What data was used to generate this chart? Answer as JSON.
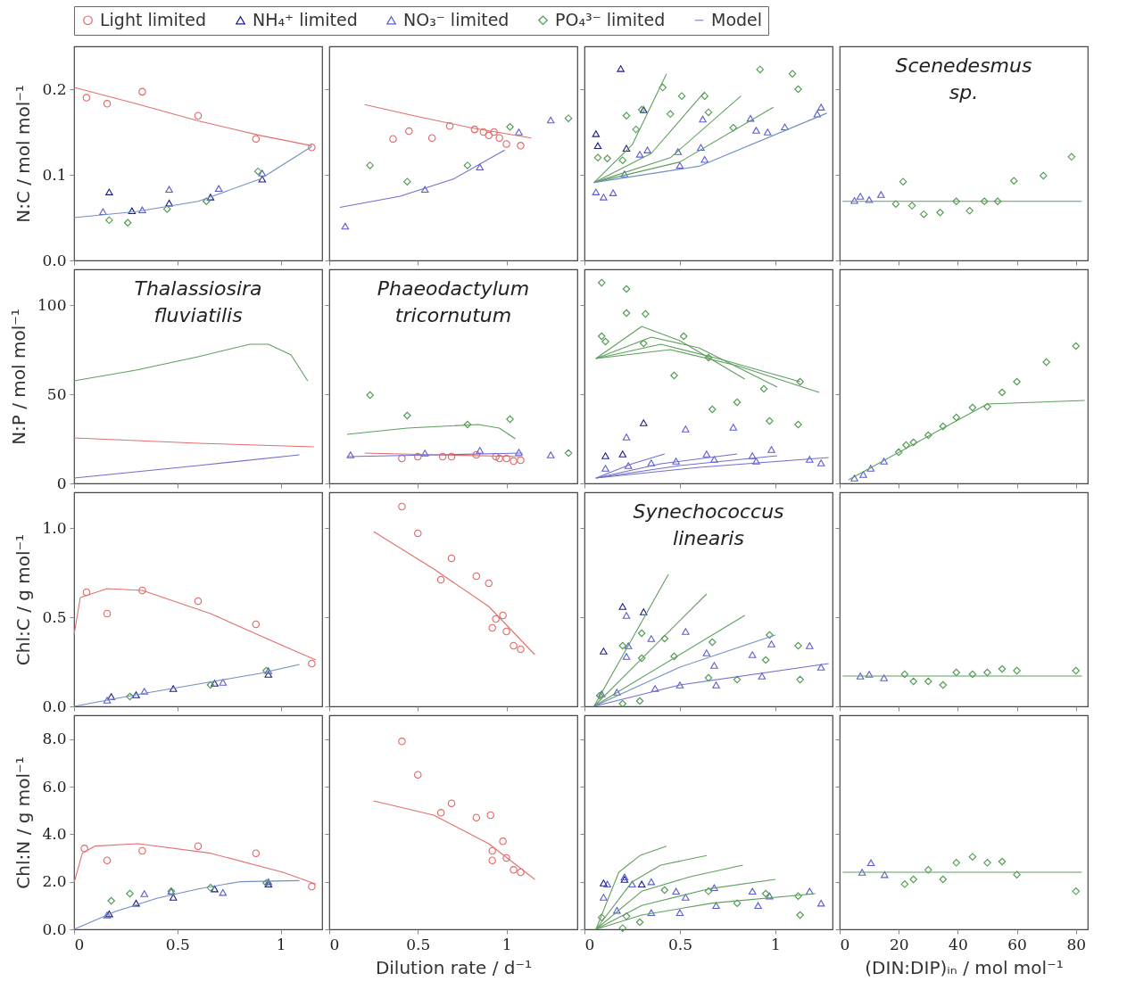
{
  "chart_data": [
    {
      "type": "scatter",
      "ylabel": "N:C / mol mol⁻¹",
      "legend": "top",
      "tick_labels": "y",
      "xlim": [
        0,
        1.2
      ],
      "xticks": [
        0,
        0.5,
        1
      ],
      "ylim": [
        0,
        0.25
      ],
      "yticks": [
        {
          "value": 0,
          "label": "0.0"
        },
        0.1,
        0.2
      ],
      "series": [
        {
          "name": "Light limited",
          "color": "#e06666",
          "marker": "circle",
          "x": [
            0.06,
            0.16,
            0.33,
            0.6,
            0.88,
            1.15
          ],
          "values": [
            0.19,
            0.183,
            0.197,
            0.169,
            0.142,
            0.132
          ]
        },
        {
          "name": "NH₄⁺ limited",
          "color": "#1c1c8c",
          "marker": "triangle",
          "x": [
            0.17,
            0.28,
            0.46,
            0.66,
            0.91
          ],
          "values": [
            0.08,
            0.058,
            0.067,
            0.074,
            0.095
          ]
        },
        {
          "name": "NO₃⁻ limited",
          "color": "#5b5bd6",
          "marker": "triangle",
          "x": [
            0.14,
            0.33,
            0.46,
            0.7,
            0.91
          ],
          "values": [
            0.057,
            0.059,
            0.083,
            0.084,
            0.102
          ]
        },
        {
          "name": "PO₄³⁻ limited",
          "color": "#4f9a4f",
          "marker": "diamond",
          "x": [
            0.17,
            0.26,
            0.45,
            0.64,
            0.89
          ],
          "values": [
            0.047,
            0.044,
            0.06,
            0.069,
            0.104
          ]
        },
        {
          "type": "line",
          "color": "#e07070",
          "x": [
            0,
            0.3,
            0.6,
            0.9,
            1.15
          ],
          "values": [
            0.202,
            0.183,
            0.163,
            0.146,
            0.134
          ]
        },
        {
          "name": "Model",
          "type": "line",
          "color": "#6f8fc0",
          "x": [
            0,
            0.3,
            0.6,
            0.9,
            1.15
          ],
          "values": [
            0.05,
            0.057,
            0.069,
            0.095,
            0.133
          ]
        }
      ]
    },
    {
      "type": "scatter",
      "tick_labels": false,
      "xlim": [
        0,
        1.4
      ],
      "xticks": [
        0,
        0.5,
        1
      ],
      "ylim": [
        0,
        0.25
      ],
      "yticks": [
        0,
        0.1,
        0.2
      ],
      "series": [
        {
          "name": "Light limited",
          "color": "#e06666",
          "marker": "circle",
          "x": [
            0.36,
            0.45,
            0.58,
            0.68,
            0.82,
            0.87,
            0.9,
            0.93,
            0.96,
            1.0,
            1.08
          ],
          "values": [
            0.142,
            0.151,
            0.143,
            0.157,
            0.153,
            0.15,
            0.146,
            0.15,
            0.143,
            0.136,
            0.134
          ]
        },
        {
          "name": "NO₃⁻ limited",
          "color": "#5b5bd6",
          "marker": "triangle",
          "x": [
            0.09,
            0.54,
            0.85,
            1.07,
            1.25
          ],
          "values": [
            0.04,
            0.083,
            0.109,
            0.15,
            0.164
          ]
        },
        {
          "name": "PO₄³⁻ limited",
          "color": "#4f9a4f",
          "marker": "diamond",
          "x": [
            0.23,
            0.44,
            0.78,
            1.02,
            1.35
          ],
          "values": [
            0.111,
            0.092,
            0.111,
            0.156,
            0.166
          ]
        },
        {
          "type": "line",
          "color": "#e07070",
          "x": [
            0.2,
            0.5,
            0.8,
            1.14
          ],
          "values": [
            0.182,
            0.168,
            0.155,
            0.143
          ]
        },
        {
          "type": "line",
          "color": "#6f6fd0",
          "x": [
            0.06,
            0.4,
            0.7,
            0.99
          ],
          "values": [
            0.062,
            0.075,
            0.095,
            0.129
          ]
        }
      ]
    },
    {
      "type": "scatter",
      "tick_labels": false,
      "xlim": [
        0,
        1.3
      ],
      "xticks": [
        0,
        0.5,
        1
      ],
      "ylim": [
        0,
        0.25
      ],
      "yticks": [
        0,
        0.1,
        0.2
      ],
      "series": [
        {
          "name": "NH₄⁺ limited",
          "color": "#1c1c8c",
          "marker": "triangle",
          "x": [
            0.06,
            0.07,
            0.19,
            0.22,
            0.31
          ],
          "values": [
            0.148,
            0.134,
            0.224,
            0.131,
            0.176
          ]
        },
        {
          "name": "NO₃⁻ limited",
          "color": "#5b5bd6",
          "marker": "triangle",
          "x": [
            0.06,
            0.1,
            0.15,
            0.21,
            0.29,
            0.33,
            0.49,
            0.5,
            0.61,
            0.63,
            0.62,
            0.87,
            0.9,
            0.96,
            1.05,
            1.22,
            1.24
          ],
          "values": [
            0.08,
            0.074,
            0.079,
            0.101,
            0.124,
            0.129,
            0.127,
            0.111,
            0.132,
            0.118,
            0.165,
            0.166,
            0.152,
            0.15,
            0.156,
            0.171,
            0.179
          ]
        },
        {
          "name": "PO₄³⁻ limited",
          "color": "#4f9a4f",
          "marker": "diamond",
          "x": [
            0.07,
            0.12,
            0.2,
            0.22,
            0.27,
            0.3,
            0.41,
            0.45,
            0.51,
            0.63,
            0.65,
            0.78,
            0.92,
            1.09,
            1.12
          ],
          "values": [
            0.12,
            0.119,
            0.117,
            0.169,
            0.153,
            0.176,
            0.202,
            0.171,
            0.192,
            0.192,
            0.173,
            0.155,
            0.223,
            0.218,
            0.2
          ]
        },
        {
          "type": "line",
          "color": "#5f9f5f",
          "x": [
            0.05,
            0.25,
            0.43
          ],
          "values": [
            0.091,
            0.135,
            0.218
          ]
        },
        {
          "type": "line",
          "color": "#5f9f5f",
          "x": [
            0.05,
            0.35,
            0.63
          ],
          "values": [
            0.091,
            0.125,
            0.197
          ]
        },
        {
          "type": "line",
          "color": "#5f9f5f",
          "x": [
            0.05,
            0.45,
            0.82
          ],
          "values": [
            0.091,
            0.12,
            0.192
          ]
        },
        {
          "type": "line",
          "color": "#5f9f5f",
          "x": [
            0.05,
            0.5,
            0.99
          ],
          "values": [
            0.091,
            0.115,
            0.179
          ]
        },
        {
          "type": "line",
          "color": "#6f8fc0",
          "x": [
            0.05,
            0.6,
            1.27
          ],
          "values": [
            0.091,
            0.11,
            0.172
          ]
        }
      ]
    },
    {
      "type": "scatter",
      "tick_labels": false,
      "annotations": [
        "Scenedesmus sp."
      ],
      "xlim": [
        0,
        84
      ],
      "xticks": [
        0,
        20,
        40,
        60,
        80
      ],
      "ylim": [
        0,
        0.25
      ],
      "yticks": [
        0,
        0.1,
        0.2
      ],
      "series": [
        {
          "name": "NO₃⁻ limited",
          "color": "#5b5bd6",
          "marker": "triangle",
          "x": [
            5,
            7,
            10,
            14
          ],
          "values": [
            0.07,
            0.075,
            0.071,
            0.077
          ]
        },
        {
          "name": "PO₄³⁻ limited",
          "color": "#4f9a4f",
          "marker": "diamond",
          "x": [
            19,
            21.5,
            24.5,
            28.5,
            34,
            39.5,
            44,
            49,
            53.5,
            59,
            69,
            78.5
          ],
          "values": [
            0.066,
            0.092,
            0.064,
            0.054,
            0.056,
            0.069,
            0.058,
            0.069,
            0.069,
            0.093,
            0.099,
            0.121
          ]
        },
        {
          "type": "line",
          "color": "#5f9f5f",
          "x": [
            1,
            82
          ],
          "values": [
            0.069,
            0.069
          ]
        }
      ]
    },
    {
      "type": "scatter",
      "ylabel": "N:P / mol mol⁻¹",
      "tick_labels": "y",
      "annotations": [
        "Thalassiosira fluviatilis"
      ],
      "xlim": [
        0,
        1.2
      ],
      "xticks": [
        0,
        0.5,
        1
      ],
      "ylim": [
        0,
        120
      ],
      "yticks": [
        0,
        50,
        100
      ],
      "series": [
        {
          "type": "line",
          "color": "#5f9f5f",
          "x": [
            0,
            0.3,
            0.6,
            0.85,
            0.94,
            1.05,
            1.13
          ],
          "values": [
            57.5,
            63.5,
            71,
            78,
            78,
            72,
            57.5
          ]
        },
        {
          "type": "line",
          "color": "#e07070",
          "x": [
            0,
            0.6,
            1.16
          ],
          "values": [
            25.5,
            22.5,
            20.5
          ]
        },
        {
          "type": "line",
          "color": "#6f6fd0",
          "x": [
            0,
            0.6,
            1.09
          ],
          "values": [
            3,
            10,
            16
          ]
        }
      ]
    },
    {
      "type": "scatter",
      "tick_labels": false,
      "annotations": [
        "Phaeodactylum tricornutum"
      ],
      "xlim": [
        0,
        1.4
      ],
      "xticks": [
        0,
        0.5,
        1
      ],
      "ylim": [
        0,
        120
      ],
      "yticks": [
        0,
        50,
        100
      ],
      "series": [
        {
          "name": "Light limited",
          "color": "#e06666",
          "marker": "circle",
          "x": [
            0.41,
            0.5,
            0.64,
            0.69,
            0.83,
            0.94,
            0.96,
            1.0,
            1.04,
            1.08
          ],
          "values": [
            14,
            15,
            15,
            15,
            16,
            15,
            14,
            14,
            12.5,
            13
          ]
        },
        {
          "name": "NO₃⁻ limited",
          "color": "#5b5bd6",
          "marker": "triangle",
          "x": [
            0.12,
            0.54,
            0.85,
            1.07,
            1.25
          ],
          "values": [
            16,
            17,
            18.5,
            17.5,
            16
          ]
        },
        {
          "name": "PO₄³⁻ limited",
          "color": "#4f9a4f",
          "marker": "diamond",
          "x": [
            0.23,
            0.44,
            0.78,
            1.02,
            1.35
          ],
          "values": [
            49.5,
            38,
            33,
            36,
            17
          ]
        },
        {
          "type": "line",
          "color": "#5f9f5f",
          "x": [
            0.1,
            0.44,
            0.84,
            0.96,
            1.05
          ],
          "values": [
            27.5,
            31,
            33,
            31,
            25
          ]
        },
        {
          "type": "line",
          "color": "#e07070",
          "x": [
            0.2,
            0.6,
            1.09
          ],
          "values": [
            17,
            16,
            15
          ]
        },
        {
          "type": "line",
          "color": "#6f6fd0",
          "x": [
            0.1,
            0.6,
            1.09
          ],
          "values": [
            15,
            16,
            17
          ]
        }
      ]
    },
    {
      "type": "scatter",
      "tick_labels": false,
      "xlim": [
        0,
        1.3
      ],
      "xticks": [
        0,
        0.5,
        1
      ],
      "ylim": [
        0,
        120
      ],
      "yticks": [
        0,
        50,
        100
      ],
      "series": [
        {
          "name": "NH₄⁺ limited",
          "color": "#1c1c8c",
          "marker": "triangle",
          "x": [
            0.31,
            0.2,
            0.11
          ],
          "values": [
            34,
            16.5,
            15.5
          ]
        },
        {
          "name": "NO₃⁻ limited",
          "color": "#5b5bd6",
          "marker": "triangle",
          "x": [
            0.22,
            0.53,
            0.78,
            0.11,
            0.23,
            0.35,
            0.48,
            0.64,
            0.68,
            0.88,
            0.98,
            0.9,
            1.18,
            1.24
          ],
          "values": [
            26,
            30.5,
            31.5,
            8.5,
            10,
            11.5,
            12.5,
            16.5,
            13.5,
            15.5,
            19,
            12.5,
            13.5,
            11.5
          ]
        },
        {
          "name": "PO₄³⁻ limited",
          "color": "#4f9a4f",
          "marker": "diamond",
          "x": [
            0.09,
            0.22,
            0.22,
            0.32,
            0.09,
            0.11,
            0.52,
            0.47,
            0.65,
            0.94,
            1.13,
            0.8,
            0.67,
            0.97,
            1.12,
            0.31
          ],
          "values": [
            112.5,
            109,
            95.5,
            95,
            82.5,
            79.5,
            82.5,
            60.5,
            70.5,
            53,
            57,
            45.5,
            41.5,
            35,
            33,
            78.5
          ]
        },
        {
          "type": "line",
          "color": "#5f9f5f",
          "x": [
            0.06,
            0.3,
            0.5,
            0.84
          ],
          "values": [
            70,
            88,
            80,
            58.5
          ]
        },
        {
          "type": "line",
          "color": "#5f9f5f",
          "x": [
            0.06,
            0.35,
            0.6,
            1.01
          ],
          "values": [
            70,
            82,
            76,
            54
          ]
        },
        {
          "type": "line",
          "color": "#5f9f5f",
          "x": [
            0.06,
            0.4,
            0.7,
            1.13
          ],
          "values": [
            70,
            78,
            70,
            57
          ]
        },
        {
          "type": "line",
          "color": "#5f9f5f",
          "x": [
            0.06,
            0.45,
            0.8,
            1.23
          ],
          "values": [
            70,
            75,
            66,
            51
          ]
        },
        {
          "type": "line",
          "color": "#6f6fd0",
          "x": [
            0.06,
            0.25,
            0.42
          ],
          "values": [
            3,
            11,
            16.5
          ]
        },
        {
          "type": "line",
          "color": "#6f6fd0",
          "x": [
            0.06,
            0.4,
            0.8
          ],
          "values": [
            3,
            11,
            16.5
          ]
        },
        {
          "type": "line",
          "color": "#6f6fd0",
          "x": [
            0.06,
            0.5,
            1.01
          ],
          "values": [
            3,
            10,
            15.5
          ]
        },
        {
          "type": "line",
          "color": "#6f6fd0",
          "x": [
            0.06,
            0.6,
            1.28
          ],
          "values": [
            3,
            9,
            14.5
          ]
        }
      ]
    },
    {
      "type": "scatter",
      "tick_labels": false,
      "xlim": [
        0,
        84
      ],
      "xticks": [
        0,
        20,
        40,
        60,
        80
      ],
      "ylim": [
        0,
        120
      ],
      "yticks": [
        0,
        50,
        100
      ],
      "series": [
        {
          "name": "NO₃⁻ limited",
          "color": "#5b5bd6",
          "marker": "triangle",
          "x": [
            5,
            8,
            10.5,
            15
          ],
          "values": [
            3,
            5,
            8.5,
            12.5
          ]
        },
        {
          "name": "PO₄³⁻ limited",
          "color": "#4f9a4f",
          "marker": "diamond",
          "x": [
            20,
            22.5,
            25,
            30,
            35,
            39.5,
            45,
            50,
            55,
            60,
            70,
            80
          ],
          "values": [
            17.5,
            21.5,
            23,
            27,
            32,
            37,
            42.5,
            43,
            51,
            57,
            68,
            77
          ]
        },
        {
          "type": "line",
          "color": "#5f9f5f",
          "x": [
            3,
            50,
            83
          ],
          "values": [
            2,
            44.5,
            46.5
          ]
        }
      ]
    },
    {
      "type": "scatter",
      "ylabel": "Chl:C / g mol⁻¹",
      "tick_labels": "y",
      "xlim": [
        0,
        1.2
      ],
      "xticks": [
        0,
        0.5,
        1
      ],
      "ylim": [
        0,
        1.2
      ],
      "yticks": [
        {
          "value": 0,
          "label": "0.0"
        },
        0.5,
        {
          "value": 1,
          "label": "1.0"
        }
      ],
      "series": [
        {
          "name": "Light limited",
          "color": "#e06666",
          "marker": "circle",
          "x": [
            0.06,
            0.16,
            0.33,
            0.6,
            0.88,
            1.15
          ],
          "values": [
            0.64,
            0.52,
            0.65,
            0.59,
            0.46,
            0.24
          ]
        },
        {
          "name": "NH₄⁺ limited",
          "color": "#1c1c8c",
          "marker": "triangle",
          "x": [
            0.18,
            0.3,
            0.48,
            0.68,
            0.94
          ],
          "values": [
            0.055,
            0.065,
            0.1,
            0.13,
            0.18
          ]
        },
        {
          "name": "NO₃⁻ limited",
          "color": "#5b5bd6",
          "marker": "triangle",
          "x": [
            0.16,
            0.34,
            0.72,
            0.94
          ],
          "values": [
            0.035,
            0.085,
            0.135,
            0.2
          ]
        },
        {
          "name": "PO₄³⁻ limited",
          "color": "#4f9a4f",
          "marker": "diamond",
          "x": [
            0.27,
            0.66,
            0.93
          ],
          "values": [
            0.055,
            0.12,
            0.2
          ]
        },
        {
          "type": "line",
          "color": "#e07070",
          "x": [
            0,
            0.03,
            0.16,
            0.33,
            0.66,
            1.01,
            1.17
          ],
          "values": [
            0.4,
            0.61,
            0.66,
            0.65,
            0.52,
            0.34,
            0.26
          ]
        },
        {
          "type": "line",
          "color": "#6f8fc0",
          "x": [
            0,
            0.3,
            0.6,
            0.9,
            1.09
          ],
          "values": [
            0,
            0.065,
            0.125,
            0.185,
            0.235
          ]
        }
      ]
    },
    {
      "type": "scatter",
      "tick_labels": false,
      "xlim": [
        0,
        1.4
      ],
      "xticks": [
        0,
        0.5,
        1
      ],
      "ylim": [
        0,
        1.2
      ],
      "yticks": [
        0,
        0.5,
        1
      ],
      "series": [
        {
          "name": "Light limited",
          "color": "#e06666",
          "marker": "circle",
          "x": [
            0.41,
            0.5,
            0.69,
            0.63,
            0.83,
            0.9,
            0.94,
            0.98,
            0.92,
            1.0,
            1.04,
            1.08
          ],
          "values": [
            1.12,
            0.97,
            0.83,
            0.71,
            0.73,
            0.69,
            0.49,
            0.51,
            0.44,
            0.42,
            0.34,
            0.32
          ]
        },
        {
          "type": "line",
          "color": "#e07070",
          "x": [
            0.25,
            0.59,
            0.9,
            1.16
          ],
          "values": [
            0.98,
            0.77,
            0.56,
            0.29
          ]
        }
      ]
    },
    {
      "type": "scatter",
      "tick_labels": false,
      "annotations": [
        "Synechococcus linearis"
      ],
      "xlim": [
        0,
        1.3
      ],
      "xticks": [
        0,
        0.5,
        1
      ],
      "ylim": [
        0,
        1.2
      ],
      "yticks": [
        0,
        0.5,
        1
      ],
      "series": [
        {
          "name": "NH₄⁺ limited",
          "color": "#1c1c8c",
          "marker": "triangle",
          "x": [
            0.2,
            0.1,
            0.31
          ],
          "values": [
            0.56,
            0.31,
            0.53
          ]
        },
        {
          "name": "NO₃⁻ limited",
          "color": "#5b5bd6",
          "marker": "triangle",
          "x": [
            0.22,
            0.35,
            0.53,
            0.23,
            0.22,
            0.64,
            0.68,
            0.88,
            0.98,
            1.18,
            1.24,
            0.93,
            0.5,
            0.69,
            0.37,
            0.17,
            0.09
          ],
          "values": [
            0.51,
            0.38,
            0.42,
            0.34,
            0.28,
            0.3,
            0.23,
            0.29,
            0.35,
            0.34,
            0.22,
            0.17,
            0.12,
            0.12,
            0.1,
            0.08,
            0.07
          ]
        },
        {
          "name": "PO₄³⁻ limited",
          "color": "#4f9a4f",
          "marker": "diamond",
          "x": [
            0.3,
            0.42,
            0.3,
            0.47,
            0.67,
            0.97,
            0.95,
            0.8,
            1.12,
            1.13,
            0.65,
            0.2,
            0.2,
            0.29,
            0.08
          ],
          "values": [
            0.41,
            0.38,
            0.27,
            0.28,
            0.36,
            0.4,
            0.26,
            0.15,
            0.34,
            0.15,
            0.16,
            0.34,
            0.015,
            0.03,
            0.06
          ]
        },
        {
          "type": "line",
          "color": "#5f9f5f",
          "x": [
            0.05,
            0.44
          ],
          "values": [
            0,
            0.74
          ]
        },
        {
          "type": "line",
          "color": "#5f9f5f",
          "x": [
            0.05,
            0.64
          ],
          "values": [
            0,
            0.63
          ]
        },
        {
          "type": "line",
          "color": "#5f9f5f",
          "x": [
            0.05,
            0.84
          ],
          "values": [
            0,
            0.51
          ]
        },
        {
          "type": "line",
          "color": "#6f8fc0",
          "x": [
            0.05,
            0.5,
            1.0
          ],
          "values": [
            0,
            0.22,
            0.4
          ]
        },
        {
          "type": "line",
          "color": "#6f6fd0",
          "x": [
            0.05,
            0.5,
            1.28
          ],
          "values": [
            0,
            0.12,
            0.24
          ]
        }
      ]
    },
    {
      "type": "scatter",
      "tick_labels": false,
      "xlim": [
        0,
        84
      ],
      "xticks": [
        0,
        20,
        40,
        60,
        80
      ],
      "ylim": [
        0,
        1.2
      ],
      "yticks": [
        0,
        0.5,
        1
      ],
      "series": [
        {
          "name": "NO₃⁻ limited",
          "color": "#5b5bd6",
          "marker": "triangle",
          "x": [
            7,
            10,
            15
          ],
          "values": [
            0.17,
            0.18,
            0.16
          ]
        },
        {
          "name": "PO₄³⁻ limited",
          "color": "#4f9a4f",
          "marker": "diamond",
          "x": [
            22,
            25,
            30,
            35,
            39.5,
            45,
            50,
            55,
            60,
            80
          ],
          "values": [
            0.18,
            0.14,
            0.14,
            0.12,
            0.19,
            0.18,
            0.19,
            0.21,
            0.2,
            0.2
          ]
        },
        {
          "type": "line",
          "color": "#5f9f5f",
          "x": [
            1,
            82
          ],
          "values": [
            0.17,
            0.17
          ]
        }
      ]
    },
    {
      "type": "scatter",
      "ylabel": "Chl:N / g mol⁻¹",
      "xlim": [
        0,
        1.2
      ],
      "xticks": [
        0,
        0.5,
        1
      ],
      "ylim": [
        0,
        9
      ],
      "yticks": [
        {
          "value": 0,
          "label": "0.0"
        },
        {
          "value": 2,
          "label": "2.0"
        },
        {
          "value": 4,
          "label": "4.0"
        },
        {
          "value": 6,
          "label": "6.0"
        },
        {
          "value": 8,
          "label": "8.0"
        }
      ],
      "series": [
        {
          "name": "Light limited",
          "color": "#e06666",
          "marker": "circle",
          "x": [
            0.05,
            0.16,
            0.33,
            0.6,
            0.88,
            1.15
          ],
          "values": [
            3.4,
            2.9,
            3.3,
            3.5,
            3.2,
            1.8
          ]
        },
        {
          "name": "NH₄⁺ limited",
          "color": "#1c1c8c",
          "marker": "triangle",
          "x": [
            0.17,
            0.3,
            0.48,
            0.68,
            0.94
          ],
          "values": [
            0.65,
            1.1,
            1.35,
            1.7,
            1.9
          ]
        },
        {
          "name": "NO₃⁻ limited",
          "color": "#5b5bd6",
          "marker": "triangle",
          "x": [
            0.16,
            0.34,
            0.47,
            0.72,
            0.94
          ],
          "values": [
            0.6,
            1.5,
            1.6,
            1.55,
            2.0
          ]
        },
        {
          "name": "PO₄³⁻ limited",
          "color": "#4f9a4f",
          "marker": "diamond",
          "x": [
            0.18,
            0.27,
            0.47,
            0.66,
            0.93
          ],
          "values": [
            1.2,
            1.5,
            1.6,
            1.75,
            1.95
          ]
        },
        {
          "type": "line",
          "color": "#e07070",
          "x": [
            0,
            0.04,
            0.1,
            0.31,
            0.66,
            1.01,
            1.17
          ],
          "values": [
            1.95,
            3.2,
            3.5,
            3.6,
            3.2,
            2.4,
            1.9
          ]
        },
        {
          "type": "line",
          "color": "#6f8fc0",
          "x": [
            0,
            0.2,
            0.4,
            0.6,
            0.8,
            1.09
          ],
          "values": [
            0,
            0.75,
            1.3,
            1.7,
            2.0,
            2.05
          ]
        }
      ]
    },
    {
      "type": "scatter",
      "xlabel": "Dilution rate / d⁻¹",
      "tick_labels": "x",
      "xlim": [
        0,
        1.4
      ],
      "xticks": [
        0,
        0.5,
        1
      ],
      "ylim": [
        0,
        9
      ],
      "yticks": [
        0,
        2,
        4,
        6,
        8
      ],
      "series": [
        {
          "name": "Light limited",
          "color": "#e06666",
          "marker": "circle",
          "x": [
            0.41,
            0.5,
            0.69,
            0.63,
            0.83,
            0.91,
            0.92,
            0.98,
            0.92,
            1.0,
            1.04,
            1.08
          ],
          "values": [
            7.9,
            6.5,
            5.3,
            4.9,
            4.7,
            4.8,
            3.3,
            3.7,
            2.9,
            3.0,
            2.5,
            2.4
          ]
        },
        {
          "type": "line",
          "color": "#e07070",
          "x": [
            0.25,
            0.59,
            0.9,
            1.16
          ],
          "values": [
            5.4,
            4.8,
            3.6,
            2.1
          ]
        }
      ]
    },
    {
      "type": "scatter",
      "tick_labels": "x",
      "xlim": [
        0,
        1.3
      ],
      "xticks": [
        0,
        0.5,
        1
      ],
      "ylim": [
        0,
        9
      ],
      "yticks": [
        0,
        2,
        4,
        6,
        8
      ],
      "series": [
        {
          "name": "NH₄⁺ limited",
          "color": "#1c1c8c",
          "marker": "triangle",
          "x": [
            0.1,
            0.21,
            0.3
          ],
          "values": [
            1.95,
            2.1,
            1.9
          ]
        },
        {
          "name": "NO₃⁻ limited",
          "color": "#5b5bd6",
          "marker": "triangle",
          "x": [
            0.12,
            0.21,
            0.25,
            0.35,
            0.48,
            0.53,
            0.68,
            0.88,
            0.97,
            1.18,
            1.24,
            0.91,
            0.69,
            0.5,
            0.35,
            0.17,
            0.1
          ],
          "values": [
            1.9,
            2.2,
            1.9,
            2.0,
            1.6,
            1.35,
            1.75,
            1.6,
            1.4,
            1.6,
            1.1,
            1.0,
            1.0,
            0.7,
            0.7,
            0.8,
            1.35
          ]
        },
        {
          "name": "PO₄³⁻ limited",
          "color": "#4f9a4f",
          "marker": "diamond",
          "x": [
            0.42,
            0.65,
            0.8,
            0.95,
            1.13,
            1.12,
            0.22,
            0.09,
            0.29,
            0.2
          ],
          "values": [
            1.65,
            1.6,
            1.1,
            1.5,
            0.6,
            1.4,
            0.55,
            0.5,
            0.3,
            0.05
          ]
        },
        {
          "type": "line",
          "color": "#5f9f5f",
          "x": [
            0.06,
            0.18,
            0.29,
            0.43
          ],
          "values": [
            0,
            2.4,
            3.1,
            3.5
          ]
        },
        {
          "type": "line",
          "color": "#5f9f5f",
          "x": [
            0.06,
            0.25,
            0.4,
            0.64
          ],
          "values": [
            0,
            2.0,
            2.7,
            3.1
          ]
        },
        {
          "type": "line",
          "color": "#5f9f5f",
          "x": [
            0.06,
            0.3,
            0.55,
            0.83
          ],
          "values": [
            0,
            1.6,
            2.2,
            2.7
          ]
        },
        {
          "type": "line",
          "color": "#5f9f5f",
          "x": [
            0.06,
            0.3,
            0.65,
            1.0
          ],
          "values": [
            0,
            1.0,
            1.7,
            2.1
          ]
        },
        {
          "type": "line",
          "color": "#5f9f5f",
          "x": [
            0.06,
            0.3,
            0.67,
            1.21
          ],
          "values": [
            0,
            0.6,
            1.1,
            1.5
          ]
        }
      ]
    },
    {
      "type": "scatter",
      "xlabel": "(DIN:DIP)ᵢₙ / mol mol⁻¹",
      "tick_labels": "x",
      "xlim": [
        0,
        84
      ],
      "xticks": [
        0,
        20,
        40,
        60,
        80
      ],
      "ylim": [
        0,
        9
      ],
      "yticks": [
        0,
        2,
        4,
        6,
        8
      ],
      "series": [
        {
          "name": "NO₃⁻ limited",
          "color": "#5b5bd6",
          "marker": "triangle",
          "x": [
            7.6,
            10.6,
            15.2
          ],
          "values": [
            2.4,
            2.8,
            2.3
          ]
        },
        {
          "name": "PO₄³⁻ limited",
          "color": "#4f9a4f",
          "marker": "diamond",
          "x": [
            22,
            25,
            30,
            35,
            39.5,
            45,
            50,
            55,
            60,
            80
          ],
          "values": [
            1.9,
            2.1,
            2.5,
            2.1,
            2.8,
            3.05,
            2.8,
            2.85,
            2.3,
            1.6
          ]
        },
        {
          "type": "line",
          "color": "#5f9f5f",
          "x": [
            1,
            82
          ],
          "values": [
            2.4,
            2.4
          ]
        }
      ]
    }
  ]
}
